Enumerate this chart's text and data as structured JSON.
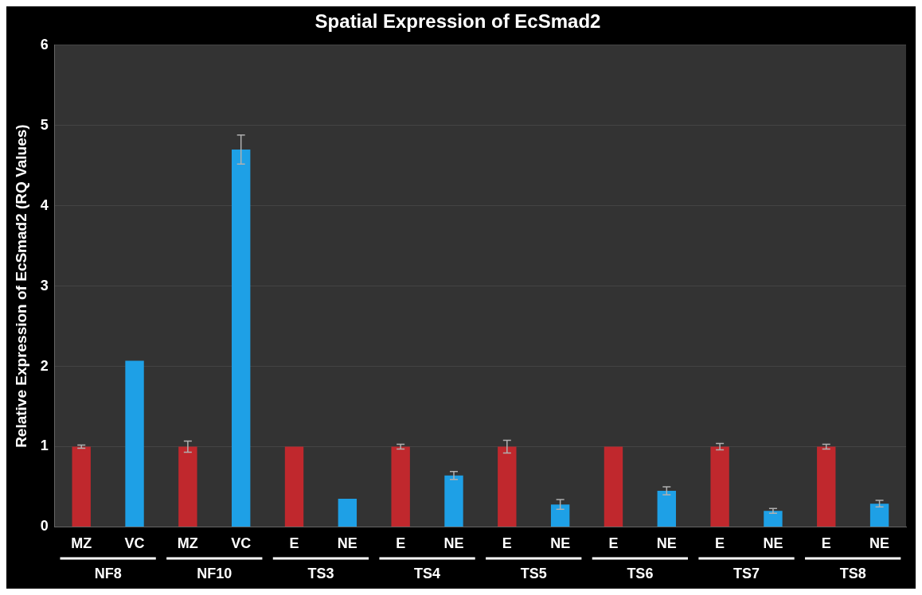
{
  "chart_data": {
    "type": "bar",
    "title": "Spatial Expression of EcSmad2",
    "ylabel": "Relative Expression of EcSmad2 (RQ Values)",
    "categories": [
      "MZ",
      "VC",
      "MZ",
      "VC",
      "E",
      "NE",
      "E",
      "NE",
      "E",
      "NE",
      "E",
      "NE",
      "E",
      "NE",
      "E",
      "NE"
    ],
    "values": [
      1.0,
      2.07,
      1.0,
      4.7,
      1.0,
      0.35,
      1.0,
      0.64,
      1.0,
      0.28,
      1.0,
      0.45,
      1.0,
      0.2,
      1.0,
      0.29
    ],
    "errors": [
      0.02,
      null,
      0.07,
      0.18,
      null,
      null,
      0.03,
      0.05,
      0.08,
      0.06,
      null,
      0.05,
      0.04,
      0.03,
      0.03,
      0.04
    ],
    "colors": [
      "#c0282d",
      "#1ea0e6",
      "#c0282d",
      "#1ea0e6",
      "#c0282d",
      "#1ea0e6",
      "#c0282d",
      "#1ea0e6",
      "#c0282d",
      "#1ea0e6",
      "#c0282d",
      "#1ea0e6",
      "#c0282d",
      "#1ea0e6",
      "#c0282d",
      "#1ea0e6"
    ],
    "annotations": [
      "NF8",
      "NF10",
      "TS3",
      "TS4",
      "TS5",
      "TS6",
      "TS7",
      "TS8"
    ],
    "ylim": [
      0,
      6
    ],
    "yticks": [
      0,
      1,
      2,
      3,
      4,
      5,
      6
    ],
    "grid": "y",
    "legend": false
  }
}
